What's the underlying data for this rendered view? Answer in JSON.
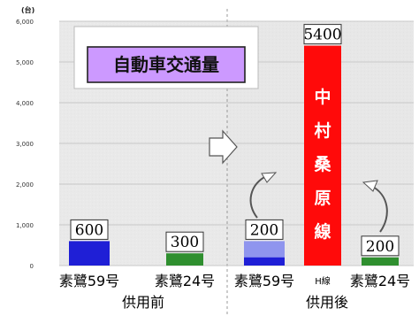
{
  "chart_data": {
    "type": "bar",
    "y_unit": "(台)",
    "y_ticks": [
      "6,000",
      "5,000",
      "4,000",
      "3,000",
      "2,000",
      "1,000",
      "0"
    ],
    "ylim": [
      0,
      6000
    ],
    "grid": true,
    "title": "自動車交通量",
    "bars": [
      {
        "name": "素鷺59号",
        "group": "供用前",
        "value": 600,
        "label": "600",
        "color": "#1f1fd6"
      },
      {
        "name": "素鷺24号",
        "group": "供用前",
        "value": 300,
        "label": "300",
        "color": "#2f8f2f"
      },
      {
        "name": "素鷺59号",
        "group": "供用後",
        "value": 200,
        "label": "200",
        "color": "#1f1fd6",
        "highlight_value": 600,
        "highlight_color": "#8f95ee"
      },
      {
        "name": "H線",
        "group": "供用後",
        "value": 5400,
        "label": "5400",
        "color": "#ff0a0a",
        "vertical_text": [
          "中",
          "村",
          "桑",
          "原",
          "線"
        ]
      },
      {
        "name": "素鷺24号",
        "group": "供用後",
        "value": 200,
        "label": "200",
        "color": "#2f8f2f"
      }
    ],
    "groups": [
      "供用前",
      "供用後"
    ]
  }
}
